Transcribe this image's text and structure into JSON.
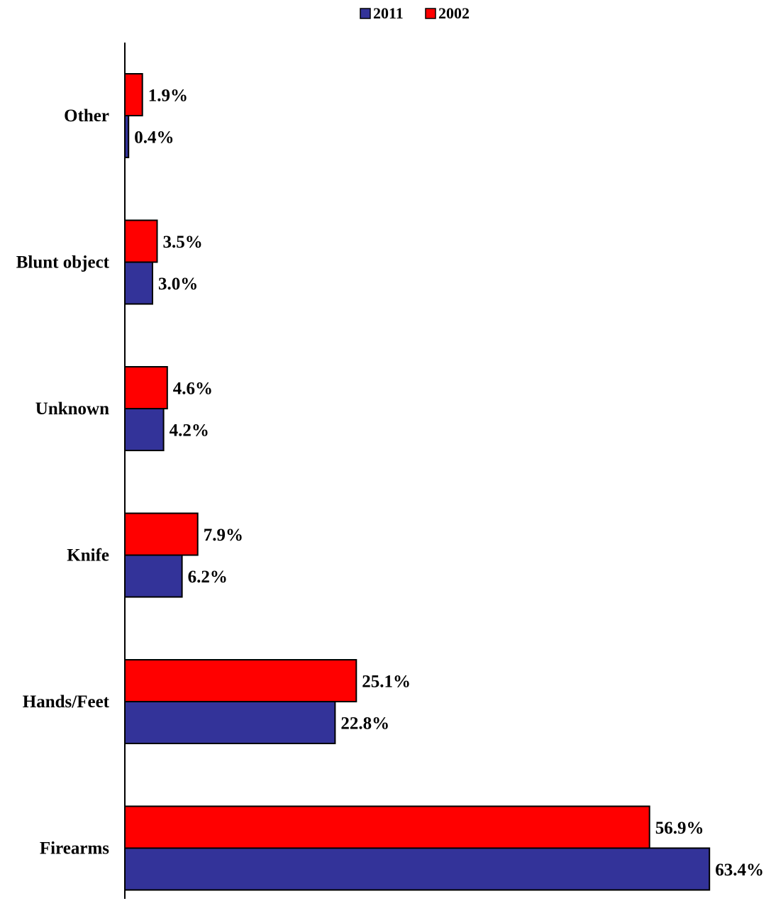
{
  "chart_data": {
    "type": "bar",
    "orientation": "horizontal",
    "categories": [
      "Other",
      "Blunt object",
      "Unknown",
      "Knife",
      "Hands/Feet",
      "Firearms"
    ],
    "series": [
      {
        "name": "2011",
        "color": "#333399",
        "values": [
          0.4,
          3.0,
          4.2,
          6.2,
          22.8,
          63.4
        ],
        "labels": [
          "0.4%",
          "3.0%",
          "4.2%",
          "6.2%",
          "22.8%",
          "63.4%"
        ]
      },
      {
        "name": "2002",
        "color": "#ff0000",
        "values": [
          1.9,
          3.5,
          4.6,
          7.9,
          25.1,
          56.9
        ],
        "labels": [
          "1.9%",
          "3.5%",
          "4.6%",
          "7.9%",
          "25.1%",
          "56.9%"
        ]
      }
    ],
    "title": "",
    "xlabel": "",
    "ylabel": "",
    "unit": "%",
    "xlim": [
      0,
      70
    ],
    "grid": false,
    "legend": "top-center"
  }
}
